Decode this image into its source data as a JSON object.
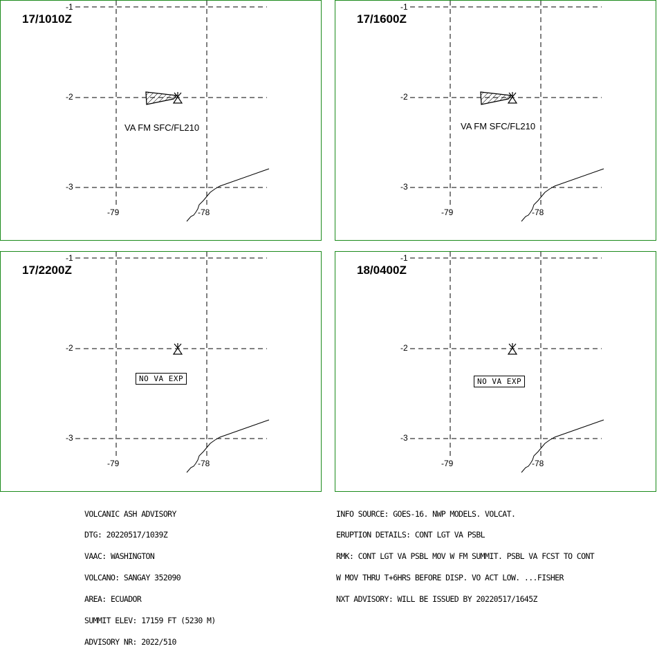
{
  "panels": [
    {
      "time": "17/1010Z",
      "label": "VA FM SFC/FL210",
      "label_type": "area",
      "area": true
    },
    {
      "time": "17/1600Z",
      "label": "VA FM SFC/FL210",
      "label_type": "area",
      "area": true
    },
    {
      "time": "17/2200Z",
      "label": "NO VA EXP",
      "label_type": "box",
      "area": false
    },
    {
      "time": "18/0400Z",
      "label": "NO VA EXP",
      "label_type": "box",
      "area": false
    }
  ],
  "ticks": {
    "lat_top": "-1",
    "lat_mid": "-2",
    "lat_bot": "-3",
    "lon_left": "-79",
    "lon_right": "-78"
  },
  "advisory_left": [
    "VOLCANIC ASH ADVISORY",
    "DTG: 20220517/1039Z",
    "VAAC: WASHINGTON",
    "VOLCANO: SANGAY 352090",
    "AREA: ECUADOR",
    "SUMMIT ELEV: 17159 FT (5230 M)",
    "ADVISORY NR: 2022/510"
  ],
  "advisory_right": [
    "INFO SOURCE: GOES-16. NWP MODELS. VOLCAT.",
    "ERUPTION DETAILS: CONT LGT VA PSBL",
    "RMK: CONT LGT VA PSBL MOV W FM SUMMIT. PSBL VA FCST TO CONT",
    "W MOV THRU T+6HRS BEFORE DISP. VO ACT LOW. ...FISHER",
    "NXT ADVISORY: WILL BE ISSUED BY 20220517/1645Z"
  ],
  "colors": {
    "border": "#1a8a1a",
    "line": "#000000"
  }
}
